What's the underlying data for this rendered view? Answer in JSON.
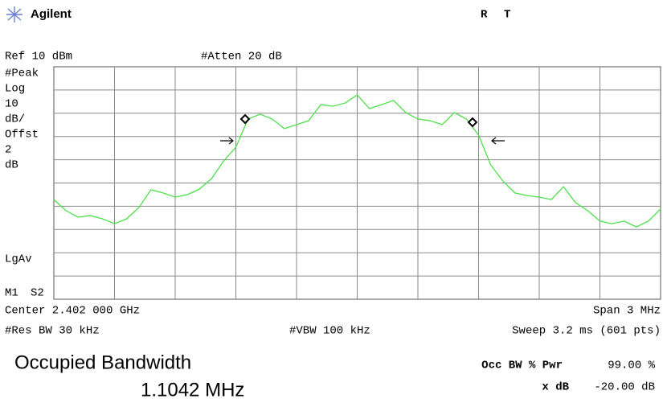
{
  "header": {
    "brand": "Agilent",
    "status": [
      "R",
      "T"
    ]
  },
  "top": {
    "ref": "Ref 10 dBm",
    "atten": "#Atten 20 dB"
  },
  "side": {
    "lines": [
      "#Peak",
      "Log",
      "10",
      "dB/",
      "Offst",
      "2",
      "dB"
    ],
    "lgav": "LgAv",
    "m1": "M1",
    "s2": "S2"
  },
  "trace": {
    "color": "#4be04b",
    "ylim": [
      -90,
      10
    ],
    "values": [
      -47.1,
      -51.9,
      -54.7,
      -54.0,
      -55.4,
      -57.5,
      -55.4,
      -50.6,
      -42.9,
      -44.3,
      -46.1,
      -45.0,
      -42.6,
      -38.1,
      -30.5,
      -24.6,
      -12.5,
      -10.4,
      -12.5,
      -16.6,
      -14.9,
      -13.2,
      -6.3,
      -7.0,
      -5.6,
      -2.1,
      -8.0,
      -6.3,
      -4.5,
      -9.7,
      -12.5,
      -13.2,
      -14.9,
      -9.7,
      -12.5,
      -19.4,
      -32.2,
      -39.1,
      -44.3,
      -45.4,
      -46.1,
      -47.1,
      -41.6,
      -48.5,
      -51.9,
      -56.4,
      -57.5,
      -56.4,
      -58.9,
      -56.4,
      -51.2
    ]
  },
  "bottom": {
    "center": "Center 2.402 000 GHz",
    "span": "Span 3 MHz",
    "rbw": "#Res BW 30 kHz",
    "vbw": "#VBW 100 kHz",
    "sweep": "Sweep 3.2 ms (601 pts)"
  },
  "result": {
    "title": "Occupied Bandwidth",
    "value": "1.1042 MHz",
    "pwr_label": "Occ BW % Pwr",
    "pwr_value": "99.00 %",
    "xdb_label": "x dB",
    "xdb_value": "-20.00 dB"
  }
}
